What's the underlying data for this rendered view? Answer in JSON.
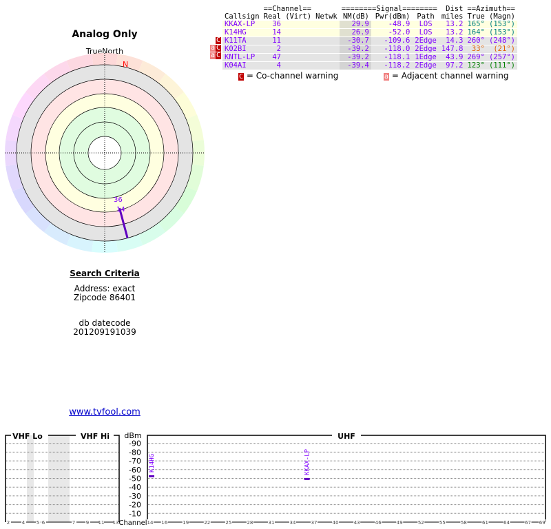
{
  "polar": {
    "title": "Analog Only",
    "true_north_label": "TrueNorth",
    "north_marker": "N",
    "stations": [
      {
        "label": "36",
        "azimuth_true": 165
      },
      {
        "label": "14",
        "azimuth_true": 164
      }
    ]
  },
  "search": {
    "heading": "Search Criteria",
    "address": "Address: exact",
    "zipcode": "Zipcode 86401",
    "db_label": "db datecode",
    "db_value": "201209191039"
  },
  "link": "www.tvfool.com",
  "table": {
    "group_headers": {
      "channel": "==Channel==",
      "signal": "========Signal========",
      "dist": "Dist",
      "azimuth": "==Azimuth=="
    },
    "headers": {
      "callsign": "Callsign",
      "real": "Real",
      "virt": "(Virt)",
      "netwk": "Netwk",
      "nm": "NM(dB)",
      "pwr": "Pwr(dBm)",
      "path": "Path",
      "miles": "miles",
      "true": "True",
      "magn": "(Magn)"
    },
    "rows": [
      {
        "callsign": "KKAX-LP",
        "real": "36",
        "virt": "",
        "netwk": "",
        "nm": "29.9",
        "pwr": "-48.9",
        "path": "LOS",
        "dist": "13.2",
        "true": "165°",
        "magn": "(153°)",
        "az_color": "#008080",
        "bg": "y",
        "warn": ""
      },
      {
        "callsign": "K14HG",
        "real": "14",
        "virt": "",
        "netwk": "",
        "nm": "26.9",
        "pwr": "-52.0",
        "path": "LOS",
        "dist": "13.2",
        "true": "164°",
        "magn": "(153°)",
        "az_color": "#008080",
        "bg": "y",
        "warn": ""
      },
      {
        "callsign": "K11TA",
        "real": "11",
        "virt": "",
        "netwk": "",
        "nm": "-30.7",
        "pwr": "-109.6",
        "path": "2Edge",
        "dist": "14.3",
        "true": "260°",
        "magn": "(248°)",
        "az_color": "#8000ff",
        "bg": "g",
        "warn": "C"
      },
      {
        "callsign": "K02BI",
        "real": "2",
        "virt": "",
        "netwk": "",
        "nm": "-39.2",
        "pwr": "-118.0",
        "path": "2Edge",
        "dist": "147.8",
        "true": "33°",
        "magn": "(21°)",
        "az_color": "#e06000",
        "bg": "g",
        "warn": "aC"
      },
      {
        "callsign": "KNTL-LP",
        "real": "47",
        "virt": "",
        "netwk": "",
        "nm": "-39.2",
        "pwr": "-118.1",
        "path": "1Edge",
        "dist": "43.9",
        "true": "269°",
        "magn": "(257°)",
        "az_color": "#8000ff",
        "bg": "g",
        "warn": "aC"
      },
      {
        "callsign": "K04AI",
        "real": "4",
        "virt": "",
        "netwk": "",
        "nm": "-39.4",
        "pwr": "-118.2",
        "path": "2Edge",
        "dist": "97.2",
        "true": "123°",
        "magn": "(111°)",
        "az_color": "#008000",
        "bg": "g",
        "warn": ""
      }
    ]
  },
  "legend": {
    "co_glyph": "C",
    "co_text": "= Co-channel warning",
    "adj_glyph": "a",
    "adj_text": "= Adjacent channel warning"
  },
  "chart_data": {
    "type": "bar",
    "ylabel": "dBm",
    "xlabel": "Channel",
    "ylim": [
      -100,
      0
    ],
    "yticks": [
      "-10",
      "-20",
      "-30",
      "-40",
      "-50",
      "-60",
      "-70",
      "-80",
      "-90"
    ],
    "sections": {
      "vhf_lo": "VHF Lo",
      "vhf_hi": "VHF Hi",
      "uhf": "UHF"
    },
    "vhf_ticks": [
      "2",
      "4",
      "5",
      "6",
      "7",
      "9",
      "11",
      "13"
    ],
    "uhf_ticks": [
      "14",
      "16",
      "19",
      "22",
      "25",
      "28",
      "31",
      "34",
      "37",
      "40",
      "43",
      "46",
      "49",
      "52",
      "55",
      "58",
      "61",
      "64",
      "67",
      "69"
    ],
    "bars": [
      {
        "callsign": "K14HG",
        "channel": 14,
        "dbm": -52.0
      },
      {
        "callsign": "KKAX-LP",
        "channel": 36,
        "dbm": -48.9
      }
    ],
    "bar_color": "#6000c0"
  }
}
